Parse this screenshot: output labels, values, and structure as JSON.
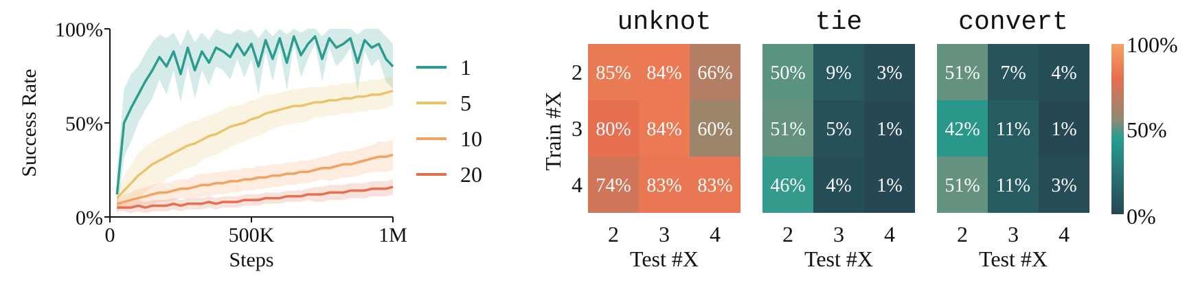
{
  "chart_data": [
    {
      "type": "line",
      "xlabel": "Steps",
      "ylabel": "Success Rate",
      "xlim": [
        0,
        1000000
      ],
      "ylim": [
        0,
        100
      ],
      "xticks": [
        {
          "value": 0,
          "label": "0"
        },
        {
          "value": 500000,
          "label": "500K"
        },
        {
          "value": 1000000,
          "label": "1M"
        }
      ],
      "yticks": [
        {
          "value": 0,
          "label": "0%"
        },
        {
          "value": 50,
          "label": "50%"
        },
        {
          "value": 100,
          "label": "100%"
        }
      ],
      "legend_position": "right",
      "grid": false,
      "series": [
        {
          "name": "1",
          "color": "#2a9d8f",
          "x": [
            25000,
            50000,
            75000,
            100000,
            125000,
            150000,
            175000,
            200000,
            225000,
            250000,
            275000,
            300000,
            325000,
            350000,
            375000,
            400000,
            425000,
            450000,
            475000,
            500000,
            525000,
            550000,
            575000,
            600000,
            625000,
            650000,
            675000,
            700000,
            725000,
            750000,
            775000,
            800000,
            825000,
            850000,
            875000,
            900000,
            925000,
            950000,
            975000,
            1000000
          ],
          "y": [
            12,
            50,
            58,
            65,
            72,
            78,
            85,
            80,
            88,
            76,
            90,
            78,
            88,
            82,
            90,
            88,
            85,
            92,
            86,
            92,
            80,
            94,
            84,
            95,
            82,
            96,
            86,
            92,
            96,
            84,
            95,
            90,
            92,
            95,
            82,
            94,
            90,
            92,
            84,
            80
          ],
          "band": [
            12,
            18,
            18,
            15,
            15,
            15,
            12,
            15,
            10,
            15,
            10,
            15,
            10,
            12,
            10,
            10,
            12,
            8,
            12,
            8,
            15,
            6,
            12,
            5,
            15,
            4,
            12,
            8,
            4,
            12,
            5,
            10,
            8,
            5,
            15,
            6,
            10,
            8,
            12,
            12
          ]
        },
        {
          "name": "5",
          "color": "#e9c46a",
          "x": [
            25000,
            50000,
            75000,
            100000,
            125000,
            150000,
            175000,
            200000,
            225000,
            250000,
            275000,
            300000,
            325000,
            350000,
            375000,
            400000,
            425000,
            450000,
            475000,
            500000,
            525000,
            550000,
            575000,
            600000,
            625000,
            650000,
            675000,
            700000,
            725000,
            750000,
            775000,
            800000,
            825000,
            850000,
            875000,
            900000,
            925000,
            950000,
            975000,
            1000000
          ],
          "y": [
            10,
            14,
            18,
            22,
            25,
            28,
            30,
            32,
            34,
            36,
            38,
            39,
            41,
            43,
            44,
            46,
            48,
            49,
            50,
            52,
            53,
            55,
            56,
            57,
            58,
            59,
            59,
            60,
            61,
            61,
            62,
            62,
            63,
            63,
            64,
            64,
            65,
            65,
            66,
            67
          ],
          "band": [
            4,
            8,
            10,
            12,
            12,
            12,
            12,
            12,
            12,
            12,
            12,
            12,
            11,
            11,
            11,
            11,
            11,
            10,
            10,
            10,
            10,
            10,
            9,
            9,
            9,
            9,
            9,
            9,
            8,
            8,
            8,
            8,
            8,
            8,
            8,
            8,
            8,
            8,
            8,
            8
          ]
        },
        {
          "name": "10",
          "color": "#f4a261",
          "x": [
            25000,
            50000,
            75000,
            100000,
            125000,
            150000,
            175000,
            200000,
            225000,
            250000,
            275000,
            300000,
            325000,
            350000,
            375000,
            400000,
            425000,
            450000,
            475000,
            500000,
            525000,
            550000,
            575000,
            600000,
            625000,
            650000,
            675000,
            700000,
            725000,
            750000,
            775000,
            800000,
            825000,
            850000,
            875000,
            900000,
            925000,
            950000,
            975000,
            1000000
          ],
          "y": [
            7,
            8,
            9,
            10,
            11,
            12,
            13,
            13,
            14,
            15,
            15,
            16,
            17,
            17,
            18,
            18,
            19,
            19,
            20,
            20,
            21,
            21,
            22,
            22,
            23,
            23,
            24,
            24,
            25,
            26,
            26,
            27,
            28,
            28,
            29,
            30,
            31,
            32,
            32,
            33
          ],
          "band": [
            3,
            4,
            4,
            5,
            5,
            5,
            5,
            5,
            5,
            5,
            5,
            6,
            6,
            6,
            6,
            6,
            6,
            6,
            6,
            6,
            6,
            6,
            6,
            6,
            6,
            6,
            6,
            6,
            6,
            6,
            7,
            7,
            7,
            7,
            7,
            7,
            7,
            8,
            8,
            8
          ]
        },
        {
          "name": "20",
          "color": "#e76f51",
          "x": [
            25000,
            50000,
            75000,
            100000,
            125000,
            150000,
            175000,
            200000,
            225000,
            250000,
            275000,
            300000,
            325000,
            350000,
            375000,
            400000,
            425000,
            450000,
            475000,
            500000,
            525000,
            550000,
            575000,
            600000,
            625000,
            650000,
            675000,
            700000,
            725000,
            750000,
            775000,
            800000,
            825000,
            850000,
            875000,
            900000,
            925000,
            950000,
            975000,
            1000000
          ],
          "y": [
            5,
            5,
            5,
            6,
            5,
            6,
            6,
            6,
            7,
            6,
            7,
            7,
            7,
            8,
            7,
            8,
            8,
            8,
            9,
            9,
            9,
            10,
            10,
            10,
            11,
            11,
            11,
            12,
            12,
            12,
            13,
            13,
            13,
            14,
            14,
            14,
            15,
            15,
            15,
            16
          ],
          "band": [
            2,
            2,
            3,
            3,
            3,
            3,
            3,
            3,
            3,
            3,
            3,
            3,
            3,
            3,
            3,
            3,
            3,
            3,
            3,
            3,
            3,
            3,
            3,
            3,
            3,
            3,
            3,
            3,
            4,
            4,
            4,
            4,
            4,
            4,
            4,
            4,
            4,
            4,
            4,
            4
          ]
        }
      ]
    },
    {
      "type": "heatmap",
      "ylabel": "Train #X",
      "xlabel": "Test #X",
      "rows": [
        "2",
        "3",
        "4"
      ],
      "cols": [
        "2",
        "3",
        "4"
      ],
      "colorbar": {
        "range": [
          0,
          100
        ],
        "ticks": [
          "100%",
          "50%",
          "0%"
        ],
        "colors": [
          "#264653",
          "#2a9d8f",
          "#e9c46a",
          "#f4a261"
        ]
      },
      "panels": [
        {
          "title": "unknot",
          "values": [
            [
              85,
              84,
              66
            ],
            [
              80,
              84,
              60
            ],
            [
              74,
              83,
              83
            ]
          ],
          "labels": [
            [
              "85%",
              "84%",
              "66%"
            ],
            [
              "80%",
              "84%",
              "60%"
            ],
            [
              "74%",
              "83%",
              "83%"
            ]
          ]
        },
        {
          "title": "tie",
          "values": [
            [
              50,
              9,
              3
            ],
            [
              51,
              5,
              1
            ],
            [
              46,
              4,
              1
            ]
          ],
          "labels": [
            [
              "50%",
              "9%",
              "3%"
            ],
            [
              "51%",
              "5%",
              "1%"
            ],
            [
              "46%",
              "4%",
              "1%"
            ]
          ]
        },
        {
          "title": "convert",
          "values": [
            [
              51,
              7,
              4
            ],
            [
              42,
              11,
              1
            ],
            [
              51,
              11,
              3
            ]
          ],
          "labels": [
            [
              "51%",
              "7%",
              "4%"
            ],
            [
              "42%",
              "11%",
              "1%"
            ],
            [
              "51%",
              "11%",
              "3%"
            ]
          ]
        }
      ]
    }
  ]
}
